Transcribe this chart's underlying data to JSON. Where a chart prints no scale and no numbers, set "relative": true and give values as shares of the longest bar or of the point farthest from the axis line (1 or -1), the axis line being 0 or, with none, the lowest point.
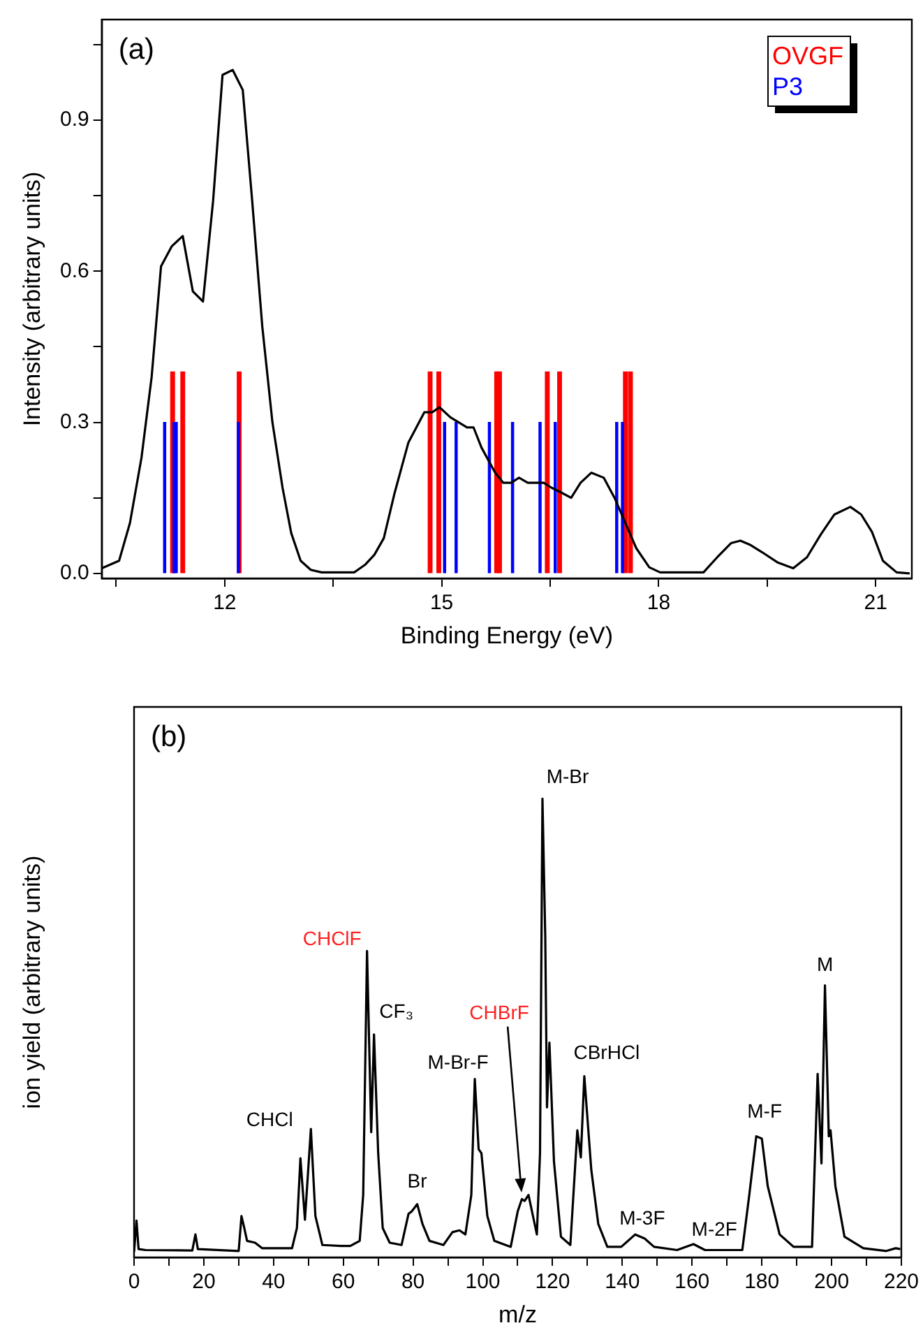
{
  "chart_data": [
    {
      "type": "line",
      "xlabel": "Binding Energy (eV)",
      "ylabel": "Intensity (arbitrary units)",
      "xlim": [
        10.3,
        21.5
      ],
      "ylim": [
        -0.01,
        1.1
      ],
      "xticks": [
        {
          "value": 10.5,
          "label": null
        },
        12,
        {
          "value": 13.5,
          "label": null
        },
        15,
        {
          "value": 16.5,
          "label": null
        },
        18,
        {
          "value": 19.5,
          "label": null
        },
        21
      ],
      "yticks": [
        {
          "value": 0,
          "label": "0.0"
        },
        {
          "value": 0.15,
          "label": null
        },
        0.3,
        {
          "value": 0.45,
          "label": null
        },
        0.6,
        {
          "value": 0.75,
          "label": null
        },
        0.9,
        {
          "value": 1.05,
          "label": null
        }
      ],
      "legend": "top right",
      "annotations": [
        "(a)"
      ],
      "series": [
        {
          "type": "line",
          "color": "#000000",
          "x": [
            10.3,
            10.54,
            10.69,
            10.85,
            10.99,
            11.12,
            11.27,
            11.42,
            11.56,
            11.7,
            11.84,
            11.97,
            12.11,
            12.25,
            12.38,
            12.52,
            12.66,
            12.8,
            12.92,
            13.05,
            13.19,
            13.34,
            13.79,
            13.94,
            14.07,
            14.2,
            14.35,
            14.54,
            14.76,
            14.87,
            14.97,
            15.12,
            15.35,
            15.44,
            15.55,
            15.74,
            15.85,
            15.96,
            16.07,
            16.19,
            16.41,
            16.52,
            16.66,
            16.79,
            16.92,
            17.07,
            17.24,
            17.39,
            17.54,
            17.69,
            17.87,
            18.02,
            18.62,
            18.81,
            19.0,
            19.13,
            19.26,
            19.43,
            19.64,
            19.86,
            20.05,
            20.24,
            20.43,
            20.65,
            20.8,
            20.95,
            21.1,
            21.29,
            21.47
          ],
          "values": [
            0.01,
            0.025,
            0.1,
            0.23,
            0.39,
            0.61,
            0.65,
            0.67,
            0.56,
            0.54,
            0.74,
            0.99,
            1.0,
            0.96,
            0.74,
            0.49,
            0.3,
            0.17,
            0.08,
            0.025,
            0.007,
            0.002,
            0.002,
            0.017,
            0.037,
            0.07,
            0.16,
            0.26,
            0.32,
            0.32,
            0.33,
            0.31,
            0.29,
            0.29,
            0.25,
            0.2,
            0.18,
            0.18,
            0.19,
            0.18,
            0.18,
            0.17,
            0.16,
            0.15,
            0.18,
            0.2,
            0.19,
            0.15,
            0.1,
            0.05,
            0.012,
            0.002,
            0.002,
            0.032,
            0.06,
            0.065,
            0.057,
            0.042,
            0.022,
            0.01,
            0.032,
            0.077,
            0.117,
            0.132,
            0.117,
            0.082,
            0.025,
            0.002,
            0
          ]
        },
        {
          "name": "OVGF",
          "type": "bar",
          "color": "#ff0000",
          "x": [
            11.28,
            11.42,
            12.2,
            14.84,
            14.96,
            15.76,
            15.8,
            16.46,
            16.63,
            17.54,
            17.61
          ],
          "values": [
            0.4,
            0.4,
            0.4,
            0.4,
            0.4,
            0.4,
            0.4,
            0.4,
            0.4,
            0.4,
            0.4
          ]
        },
        {
          "name": "P3",
          "type": "bar",
          "color": "#0000ff",
          "x": [
            11.17,
            11.3,
            11.33,
            12.19,
            15.04,
            15.2,
            15.66,
            15.98,
            16.36,
            16.57,
            17.42,
            17.5
          ],
          "values": [
            0.3,
            0.3,
            0.3,
            0.3,
            0.3,
            0.3,
            0.3,
            0.3,
            0.3,
            0.3,
            0.3,
            0.3
          ]
        }
      ]
    },
    {
      "type": "line",
      "relative": true,
      "xlabel": "m/z",
      "ylabel": "ion yield (arbitrary units)",
      "xlim": [
        0,
        220
      ],
      "xticks": [
        0,
        {
          "value": 10,
          "label": null
        },
        20,
        {
          "value": 30,
          "label": null
        },
        40,
        {
          "value": 50,
          "label": null
        },
        60,
        {
          "value": 70,
          "label": null
        },
        80,
        {
          "value": 90,
          "label": null
        },
        100,
        {
          "value": 110,
          "label": null
        },
        120,
        {
          "value": 130,
          "label": null
        },
        140,
        {
          "value": 150,
          "label": null
        },
        160,
        {
          "value": 170,
          "label": null
        },
        180,
        {
          "value": 190,
          "label": null
        },
        200,
        {
          "value": 210,
          "label": null
        },
        220
      ],
      "annotations": [
        "(b)",
        {
          "text": "CHCl",
          "x": 47.7,
          "y": 0.216
        },
        {
          "text": "CHClF",
          "x": 66.8,
          "y": 0.668
        },
        {
          "text": "CF₃",
          "x": 68.8,
          "y": 0.486
        },
        {
          "text": "Br",
          "x": 81.2,
          "y": 0.116
        },
        {
          "text": "M-Br-F",
          "x": 97.7,
          "y": 0.389
        },
        "CHBrF",
        {
          "text": "M-Br",
          "x": 117.1,
          "y": 1.0
        },
        {
          "text": "CBrHCl",
          "x": 129.1,
          "y": 0.395
        },
        {
          "text": "M-3F",
          "x": 143.7,
          "y": 0.05
        },
        {
          "text": "M-2F",
          "x": 160.4,
          "y": 0.029
        },
        {
          "text": "M-F",
          "x": 178.4,
          "y": 0.264
        },
        {
          "text": "M",
          "x": 198.1,
          "y": 0.593
        }
      ],
      "color": "#000000",
      "x": [
        0,
        0.7,
        1.3,
        3.3,
        16.7,
        17.6,
        18.3,
        30,
        30.8,
        31.6,
        32.4,
        34.7,
        36.7,
        45.3,
        46.7,
        47.7,
        49,
        50.7,
        52,
        54,
        59.3,
        62,
        64.7,
        65.7,
        66.8,
        68,
        68.8,
        70,
        71.3,
        73.3,
        76.7,
        78.7,
        79.6,
        81.2,
        82.7,
        84.7,
        88.7,
        91.3,
        93.3,
        95,
        96.7,
        97.7,
        98.8,
        99.6,
        101.3,
        103.3,
        108,
        110,
        111.2,
        112,
        113.1,
        115.5,
        116.4,
        117.1,
        117.9,
        118.4,
        119.1,
        120.4,
        122.4,
        125.1,
        127.1,
        128.1,
        129.1,
        131.1,
        133.1,
        135.7,
        139.7,
        143.7,
        146.4,
        149.1,
        155.7,
        160.4,
        163.7,
        174.4,
        176.4,
        178.4,
        180,
        181.7,
        185.1,
        189.1,
        194.4,
        196,
        197.1,
        198.1,
        199.2,
        199.7,
        201.1,
        203.7,
        209.1,
        215.7,
        218.4,
        219.7
      ],
      "values": [
        0.012,
        0.08,
        0.018,
        0.016,
        0.015,
        0.05,
        0.018,
        0.014,
        0.09,
        0.064,
        0.036,
        0.032,
        0.02,
        0.02,
        0.064,
        0.216,
        0.082,
        0.28,
        0.09,
        0.027,
        0.025,
        0.025,
        0.036,
        0.136,
        0.668,
        0.273,
        0.486,
        0.227,
        0.064,
        0.032,
        0.027,
        0.095,
        0.1,
        0.116,
        0.073,
        0.036,
        0.027,
        0.055,
        0.059,
        0.05,
        0.136,
        0.389,
        0.236,
        0.227,
        0.09,
        0.036,
        0.023,
        0.1,
        0.127,
        0.123,
        0.136,
        0.05,
        0.227,
        1.0,
        0.7,
        0.327,
        0.468,
        0.209,
        0.045,
        0.027,
        0.277,
        0.218,
        0.395,
        0.191,
        0.073,
        0.023,
        0.023,
        0.05,
        0.041,
        0.023,
        0.016,
        0.029,
        0.016,
        0.016,
        0.136,
        0.264,
        0.259,
        0.155,
        0.05,
        0.023,
        0.023,
        0.4,
        0.205,
        0.593,
        0.264,
        0.277,
        0.155,
        0.045,
        0.02,
        0.014,
        0.02,
        0.018
      ]
    }
  ]
}
